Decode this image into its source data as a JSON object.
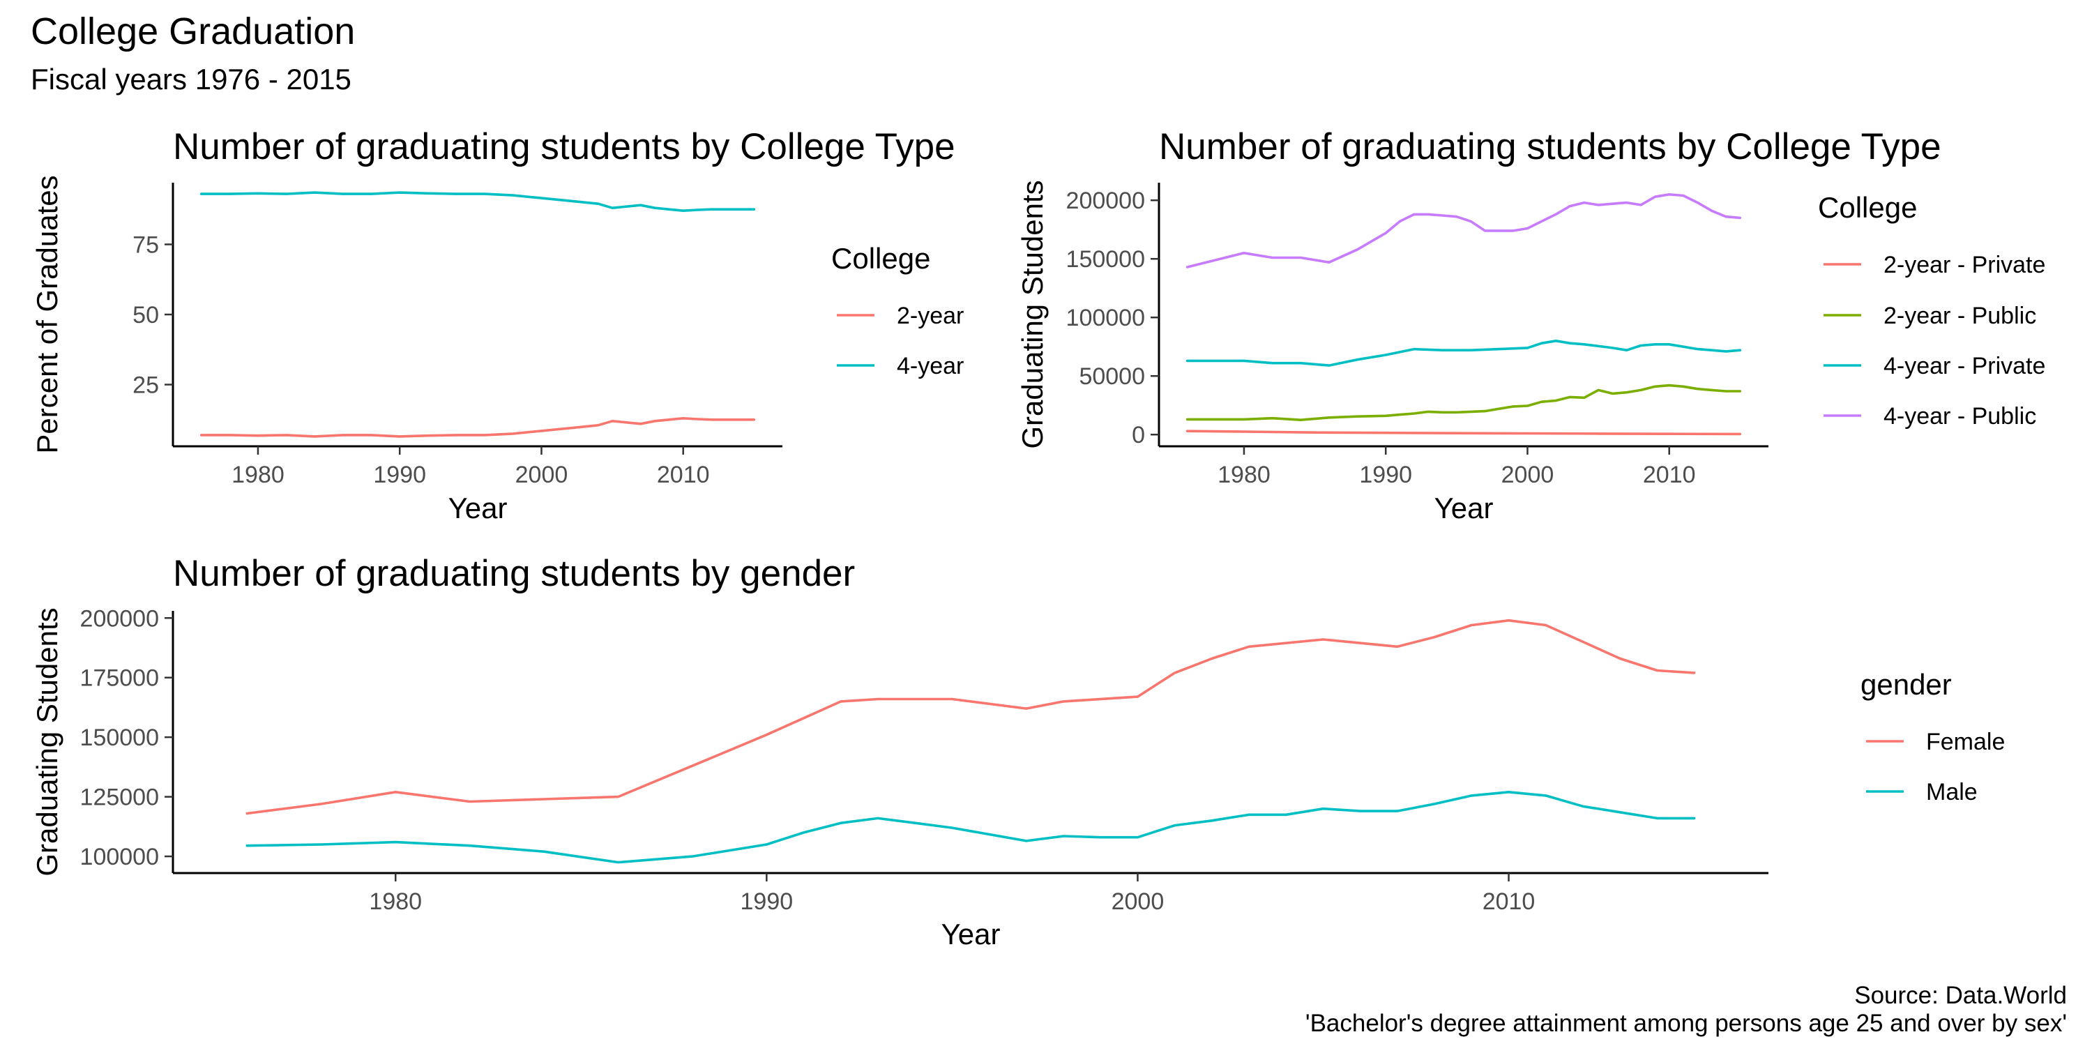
{
  "page": {
    "title": "College Graduation",
    "subtitle": "Fiscal years 1976 - 2015",
    "caption_source": "Source: Data.World",
    "caption_note": "'Bachelor's degree attainment among persons age 25 and over by sex'"
  },
  "colors": {
    "red": "#F8766D",
    "cyan": "#00BFC4",
    "green": "#7CAE00",
    "purple": "#C77CFF"
  },
  "chart_data": [
    {
      "id": "p1",
      "type": "line",
      "title": "Number of graduating students by College Type",
      "xlabel": "Year",
      "ylabel": "Percent of Graduates",
      "xlim": [
        1974,
        2017
      ],
      "ylim": [
        3,
        97
      ],
      "xticks": [
        1980,
        1990,
        2000,
        2010
      ],
      "yticks": [
        25,
        50,
        75
      ],
      "grid": false,
      "legend_title": "College",
      "legend_position": "right",
      "series": [
        {
          "name": "2-year",
          "color": "#F8766D",
          "x": [
            1976,
            1978,
            1980,
            1982,
            1984,
            1986,
            1988,
            1990,
            1992,
            1994,
            1996,
            1998,
            2000,
            2002,
            2004,
            2005,
            2006,
            2007,
            2008,
            2009,
            2010,
            2011,
            2012,
            2013,
            2014,
            2015
          ],
          "y": [
            7,
            7,
            6.8,
            7,
            6.5,
            7,
            7,
            6.5,
            6.8,
            7,
            7,
            7.5,
            8.5,
            9.5,
            10.5,
            12,
            11.5,
            11,
            12,
            12.5,
            13,
            12.7,
            12.5,
            12.5,
            12.5,
            12.5
          ]
        },
        {
          "name": "4-year",
          "color": "#00BFC4",
          "x": [
            1976,
            1978,
            1980,
            1982,
            1984,
            1986,
            1988,
            1990,
            1992,
            1994,
            1996,
            1998,
            2000,
            2002,
            2004,
            2005,
            2006,
            2007,
            2008,
            2009,
            2010,
            2011,
            2012,
            2013,
            2014,
            2015
          ],
          "y": [
            93,
            93,
            93.2,
            93,
            93.5,
            93,
            93,
            93.5,
            93.2,
            93,
            93,
            92.5,
            91.5,
            90.5,
            89.5,
            88,
            88.5,
            89,
            88,
            87.5,
            87,
            87.3,
            87.5,
            87.5,
            87.5,
            87.5
          ]
        }
      ]
    },
    {
      "id": "p2",
      "type": "line",
      "title": "Number of graduating students by College Type",
      "xlabel": "Year",
      "ylabel": "Graduating Students",
      "xlim": [
        1974,
        2017
      ],
      "ylim": [
        -10000,
        215000
      ],
      "xticks": [
        1980,
        1990,
        2000,
        2010
      ],
      "yticks": [
        0,
        50000,
        100000,
        150000,
        200000
      ],
      "grid": false,
      "legend_title": "College",
      "legend_position": "right",
      "series": [
        {
          "name": "2-year - Private",
          "color": "#F8766D",
          "x": [
            1976,
            1980,
            1985,
            1990,
            1995,
            2000,
            2005,
            2010,
            2015
          ],
          "y": [
            3000,
            2500,
            1800,
            1500,
            1200,
            1000,
            800,
            600,
            500
          ]
        },
        {
          "name": "2-year - Public",
          "color": "#7CAE00",
          "x": [
            1976,
            1978,
            1980,
            1982,
            1984,
            1986,
            1988,
            1990,
            1991,
            1992,
            1993,
            1994,
            1995,
            1996,
            1997,
            1998,
            1999,
            2000,
            2001,
            2002,
            2003,
            2004,
            2005,
            2006,
            2007,
            2008,
            2009,
            2010,
            2011,
            2012,
            2013,
            2014,
            2015
          ],
          "y": [
            13000,
            13000,
            13000,
            14000,
            12500,
            14500,
            15500,
            16000,
            17000,
            18000,
            19500,
            19000,
            19000,
            19500,
            20000,
            22000,
            24000,
            24500,
            28000,
            29000,
            32000,
            31500,
            38000,
            35000,
            36000,
            38000,
            41000,
            42000,
            41000,
            39000,
            38000,
            37000,
            37000
          ]
        },
        {
          "name": "4-year - Private",
          "color": "#00BFC4",
          "x": [
            1976,
            1980,
            1982,
            1984,
            1986,
            1988,
            1990,
            1992,
            1994,
            1996,
            1998,
            2000,
            2001,
            2002,
            2003,
            2004,
            2006,
            2007,
            2008,
            2009,
            2010,
            2011,
            2012,
            2013,
            2014,
            2015
          ],
          "y": [
            63000,
            63000,
            61000,
            61000,
            59000,
            64000,
            68000,
            73000,
            72000,
            72000,
            73000,
            74000,
            78000,
            80000,
            78000,
            77000,
            74000,
            72000,
            76000,
            77000,
            77000,
            75000,
            73000,
            72000,
            71000,
            72000
          ]
        },
        {
          "name": "4-year - Public",
          "color": "#C77CFF",
          "x": [
            1976,
            1978,
            1980,
            1982,
            1984,
            1986,
            1988,
            1990,
            1991,
            1992,
            1993,
            1994,
            1995,
            1996,
            1997,
            1998,
            1999,
            2000,
            2001,
            2002,
            2003,
            2004,
            2005,
            2006,
            2007,
            2008,
            2009,
            2010,
            2011,
            2012,
            2013,
            2014,
            2015
          ],
          "y": [
            143000,
            149000,
            155000,
            151000,
            151000,
            147000,
            158000,
            172000,
            182000,
            188000,
            188000,
            187000,
            186000,
            182000,
            174000,
            174000,
            174000,
            176000,
            182000,
            188000,
            195000,
            198000,
            196000,
            197000,
            198000,
            196000,
            203000,
            205000,
            204000,
            198000,
            191000,
            186000,
            185000
          ]
        }
      ]
    },
    {
      "id": "p3",
      "type": "line",
      "title": "Number of graduating students by gender",
      "xlabel": "Year",
      "ylabel": "Graduating Students",
      "xlim": [
        1974,
        2017
      ],
      "ylim": [
        93000,
        203000
      ],
      "xticks": [
        1980,
        1990,
        2000,
        2010
      ],
      "yticks": [
        100000,
        125000,
        150000,
        175000,
        200000
      ],
      "grid": false,
      "legend_title": "gender",
      "legend_position": "right",
      "series": [
        {
          "name": "Female",
          "color": "#F8766D",
          "x": [
            1976,
            1978,
            1980,
            1982,
            1984,
            1986,
            1988,
            1990,
            1991,
            1992,
            1993,
            1995,
            1997,
            1998,
            2000,
            2001,
            2002,
            2003,
            2005,
            2007,
            2008,
            2009,
            2010,
            2011,
            2012,
            2013,
            2014,
            2015
          ],
          "y": [
            118000,
            122000,
            127000,
            123000,
            124000,
            125000,
            138000,
            151000,
            158000,
            165000,
            166000,
            166000,
            162000,
            165000,
            167000,
            177000,
            183000,
            188000,
            191000,
            188000,
            192000,
            197000,
            199000,
            197000,
            190000,
            183000,
            178000,
            177000
          ]
        },
        {
          "name": "Male",
          "color": "#00BFC4",
          "x": [
            1976,
            1978,
            1980,
            1982,
            1984,
            1986,
            1988,
            1990,
            1991,
            1992,
            1993,
            1994,
            1995,
            1997,
            1998,
            1999,
            2000,
            2001,
            2002,
            2003,
            2004,
            2005,
            2006,
            2007,
            2008,
            2009,
            2010,
            2011,
            2012,
            2013,
            2014,
            2015
          ],
          "y": [
            104500,
            105000,
            106000,
            104500,
            102000,
            97500,
            100000,
            105000,
            110000,
            114000,
            116000,
            114000,
            112000,
            106500,
            108500,
            108000,
            108000,
            113000,
            115000,
            117500,
            117500,
            120000,
            119000,
            119000,
            122000,
            125500,
            127000,
            125500,
            121000,
            118500,
            116000,
            116000
          ]
        }
      ]
    }
  ]
}
